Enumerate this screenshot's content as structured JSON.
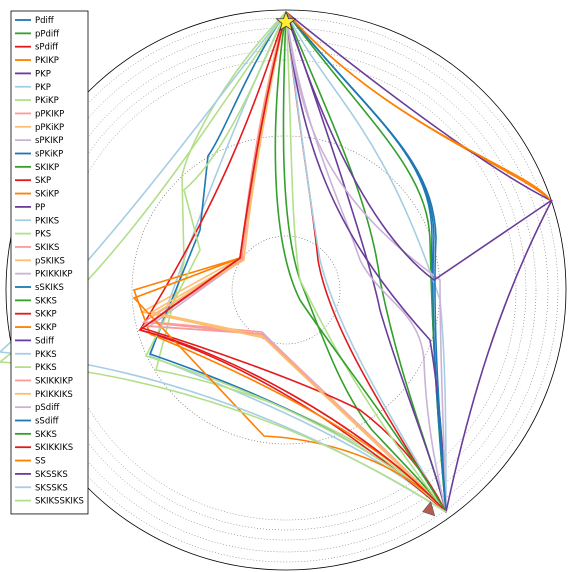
{
  "chart_data": {
    "type": "polar-ray-path",
    "title": "",
    "source_marker": {
      "shape": "star",
      "color": "#ffee33",
      "angle_deg": 0
    },
    "receiver_marker": {
      "shape": "triangle",
      "color": "#b85a4f",
      "angle_deg": 147
    },
    "grid": "dotted",
    "legend_position": "left",
    "series": [
      {
        "name": "Pdiff",
        "color": "#1f78b4"
      },
      {
        "name": "pPdiff",
        "color": "#33a02c"
      },
      {
        "name": "sPdiff",
        "color": "#e31a1c"
      },
      {
        "name": "PKIKP",
        "color": "#ff7f00"
      },
      {
        "name": "PKP",
        "color": "#6a3d9a"
      },
      {
        "name": "PKP",
        "color": "#a6cee3"
      },
      {
        "name": "PKiKP",
        "color": "#b2df8a"
      },
      {
        "name": "pPKIKP",
        "color": "#fb9a99"
      },
      {
        "name": "pPKiKP",
        "color": "#fdbf6f"
      },
      {
        "name": "sPKIKP",
        "color": "#cab2d6"
      },
      {
        "name": "sPKiKP",
        "color": "#1f78b4"
      },
      {
        "name": "SKIKP",
        "color": "#33a02c"
      },
      {
        "name": "SKP",
        "color": "#e31a1c"
      },
      {
        "name": "SKiKP",
        "color": "#ff7f00"
      },
      {
        "name": "PP",
        "color": "#6a3d9a"
      },
      {
        "name": "PKIKS",
        "color": "#a6cee3"
      },
      {
        "name": "PKS",
        "color": "#b2df8a"
      },
      {
        "name": "SKIKS",
        "color": "#fb9a99"
      },
      {
        "name": "pSKIKS",
        "color": "#fdbf6f"
      },
      {
        "name": "PKIKKIKP",
        "color": "#cab2d6"
      },
      {
        "name": "sSKIKS",
        "color": "#1f78b4"
      },
      {
        "name": "SKKS",
        "color": "#33a02c"
      },
      {
        "name": "SKKP",
        "color": "#e31a1c"
      },
      {
        "name": "SKKP",
        "color": "#ff7f00"
      },
      {
        "name": "Sdiff",
        "color": "#6a3d9a"
      },
      {
        "name": "PKKS",
        "color": "#a6cee3"
      },
      {
        "name": "PKKS",
        "color": "#b2df8a"
      },
      {
        "name": "SKIKKIKP",
        "color": "#fb9a99"
      },
      {
        "name": "PKIKKIKS",
        "color": "#fdbf6f"
      },
      {
        "name": "pSdiff",
        "color": "#cab2d6"
      },
      {
        "name": "sSdiff",
        "color": "#1f78b4"
      },
      {
        "name": "SKKS",
        "color": "#33a02c"
      },
      {
        "name": "SKIKKIKS",
        "color": "#e31a1c"
      },
      {
        "name": "SS",
        "color": "#ff7f00"
      },
      {
        "name": "SKSSKS",
        "color": "#6a3d9a"
      },
      {
        "name": "SKSSKS",
        "color": "#a6cee3"
      },
      {
        "name": "SKIKSSKIKS",
        "color": "#b2df8a"
      }
    ]
  }
}
